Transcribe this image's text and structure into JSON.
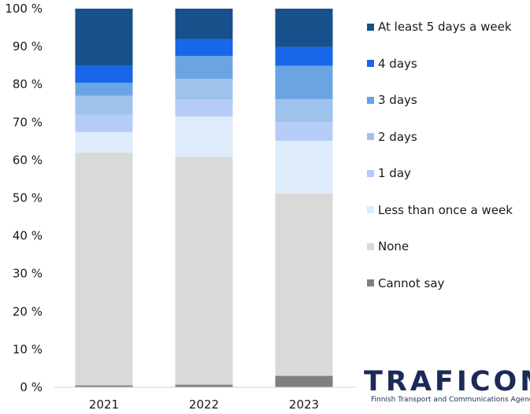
{
  "chart_data": {
    "type": "bar",
    "stacked": true,
    "categories": [
      "2021",
      "2022",
      "2023"
    ],
    "ylim": [
      0,
      100
    ],
    "yticks": [
      0,
      10,
      20,
      30,
      40,
      50,
      60,
      70,
      80,
      90,
      100
    ],
    "ytick_format": "{} %",
    "grid": false,
    "legend_placement": "right",
    "series": [
      {
        "name": "Cannot say",
        "color": "#7f7f7f",
        "values": [
          0.5,
          0.7,
          3.0
        ]
      },
      {
        "name": "None",
        "color": "#d9d9d9",
        "values": [
          61.5,
          60.1,
          48.2
        ]
      },
      {
        "name": "Less than once a week",
        "color": "#ddebfb",
        "values": [
          5.4,
          10.7,
          13.9
        ]
      },
      {
        "name": "1 day",
        "color": "#b4ccf7",
        "values": [
          4.6,
          4.5,
          4.9
        ]
      },
      {
        "name": "2 days",
        "color": "#9dc3ed",
        "values": [
          5.0,
          5.5,
          6.1
        ]
      },
      {
        "name": "3 days",
        "color": "#6ba4e3",
        "values": [
          3.4,
          6.0,
          8.8
        ]
      },
      {
        "name": "4 days",
        "color": "#1866ea",
        "values": [
          4.5,
          4.5,
          5.0
        ]
      },
      {
        "name": "At least 5 days a week",
        "color": "#17508b",
        "values": [
          15.1,
          8.0,
          10.1
        ]
      }
    ]
  },
  "logo": {
    "wordmark": "TRAFICOM",
    "subtitle": "Finnish Transport and Communications Agency"
  }
}
